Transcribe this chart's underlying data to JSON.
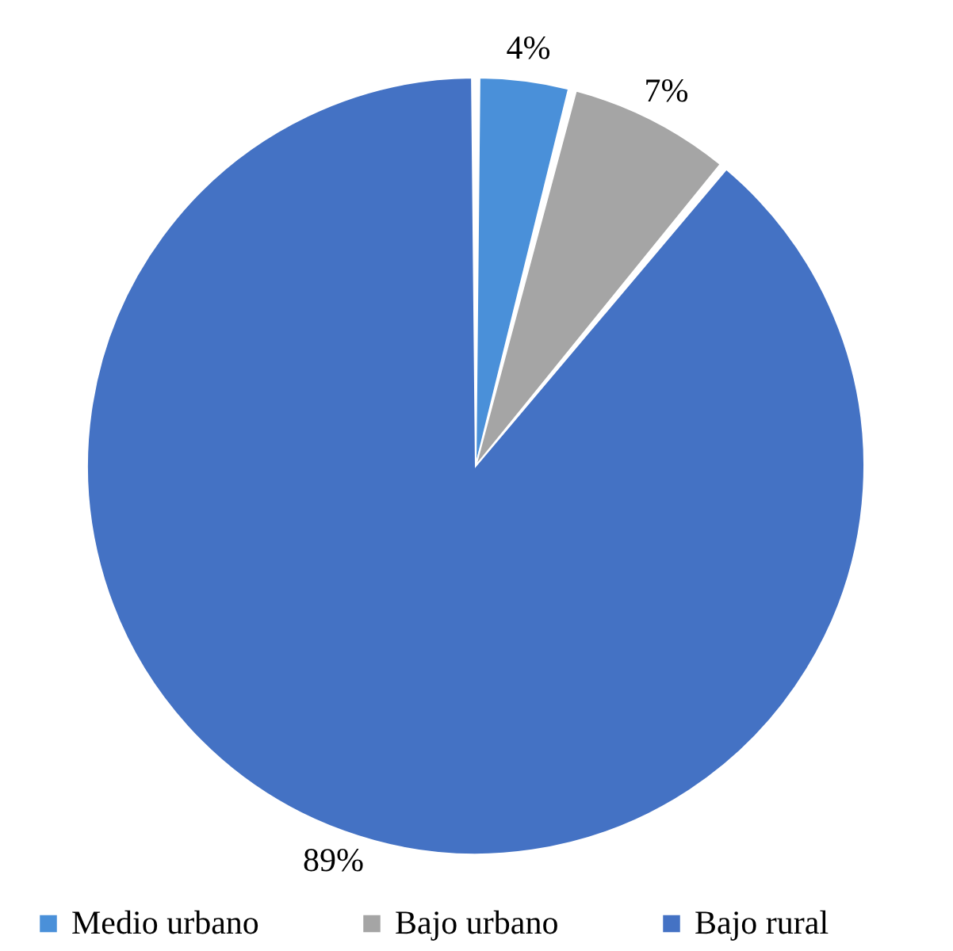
{
  "chart_data": {
    "type": "pie",
    "categories": [
      "Medio urbano",
      "Bajo urbano",
      "Bajo rural"
    ],
    "values": [
      4,
      7,
      89
    ],
    "colors": [
      "#4a90d9",
      "#a5a5a5",
      "#4472c4"
    ],
    "value_labels": [
      "4%",
      "7%",
      "89%"
    ],
    "legend": "bottom"
  }
}
